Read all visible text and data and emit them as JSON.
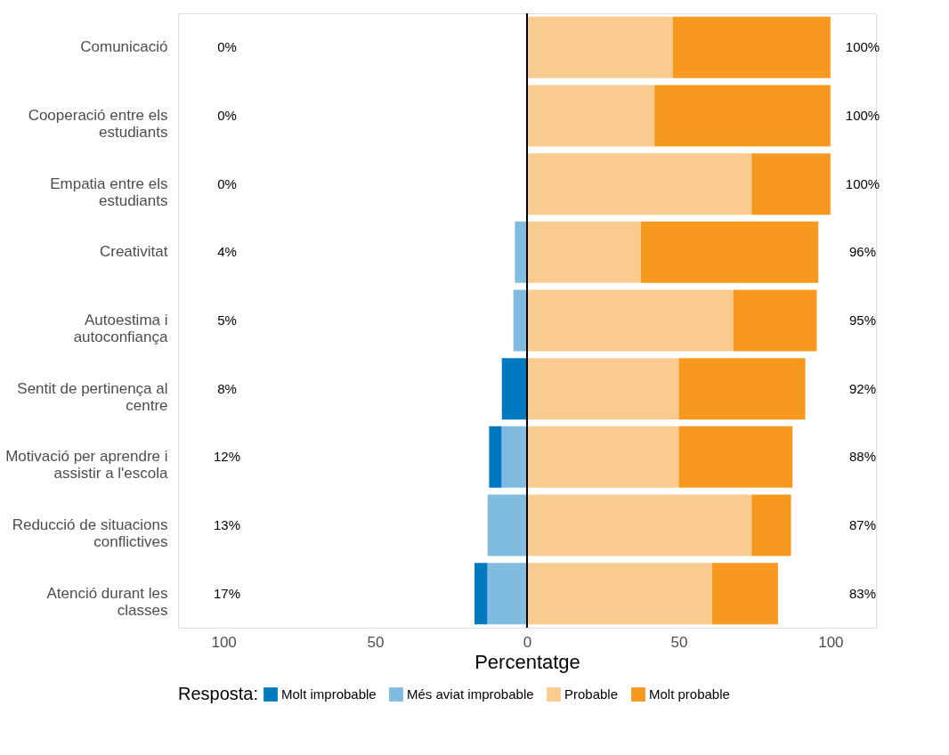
{
  "chart_data": {
    "type": "bar",
    "orientation": "horizontal",
    "stacked": true,
    "xlabel": "Percentatge",
    "legend_title": "Resposta:",
    "legend": "bottom",
    "grid": "x",
    "categories": [
      "Comunicació",
      "Cooperació entre els estudiants",
      "Empatia entre els estudiants",
      "Creativitat",
      "Autoestima i autoconfiança",
      "Sentit de pertinença al centre",
      "Motivació per aprendre i assistir a l'escola",
      "Reducció de situacions conflictives",
      "Atenció durant les classes"
    ],
    "series": [
      {
        "name": "Molt improbable",
        "color": "#0179c0",
        "values": [
          0,
          0,
          0,
          0,
          0,
          -8.3,
          -4.2,
          0,
          -4.3
        ]
      },
      {
        "name": "Més aviat improbable",
        "color": "#80bce0",
        "values": [
          0,
          0,
          0,
          -4,
          -4.5,
          0,
          -8.3,
          -13,
          -13
        ]
      },
      {
        "name": "Probable",
        "color": "#f9cb8e",
        "values": [
          48,
          42,
          74,
          37.5,
          68,
          50,
          50,
          74,
          61
        ]
      },
      {
        "name": "Molt probable",
        "color": "#f7981f",
        "values": [
          52,
          58,
          26,
          58.5,
          27.5,
          41.7,
          37.5,
          13,
          21.7
        ]
      }
    ],
    "xlim": [
      -115,
      115
    ],
    "xticks": [
      {
        "value": -100,
        "label": "100"
      },
      {
        "value": -50,
        "label": "50"
      },
      0,
      50,
      100
    ],
    "ref_lines": [
      {
        "axis": "x",
        "value": 0,
        "color": "#000000"
      }
    ],
    "annotations": [
      "0%",
      "100%",
      "0%",
      "100%",
      "0%",
      "100%",
      "4%",
      "96%",
      "5%",
      "95%",
      "8%",
      "92%",
      "12%",
      "88%",
      "13%",
      "87%",
      "17%",
      "83%"
    ]
  }
}
